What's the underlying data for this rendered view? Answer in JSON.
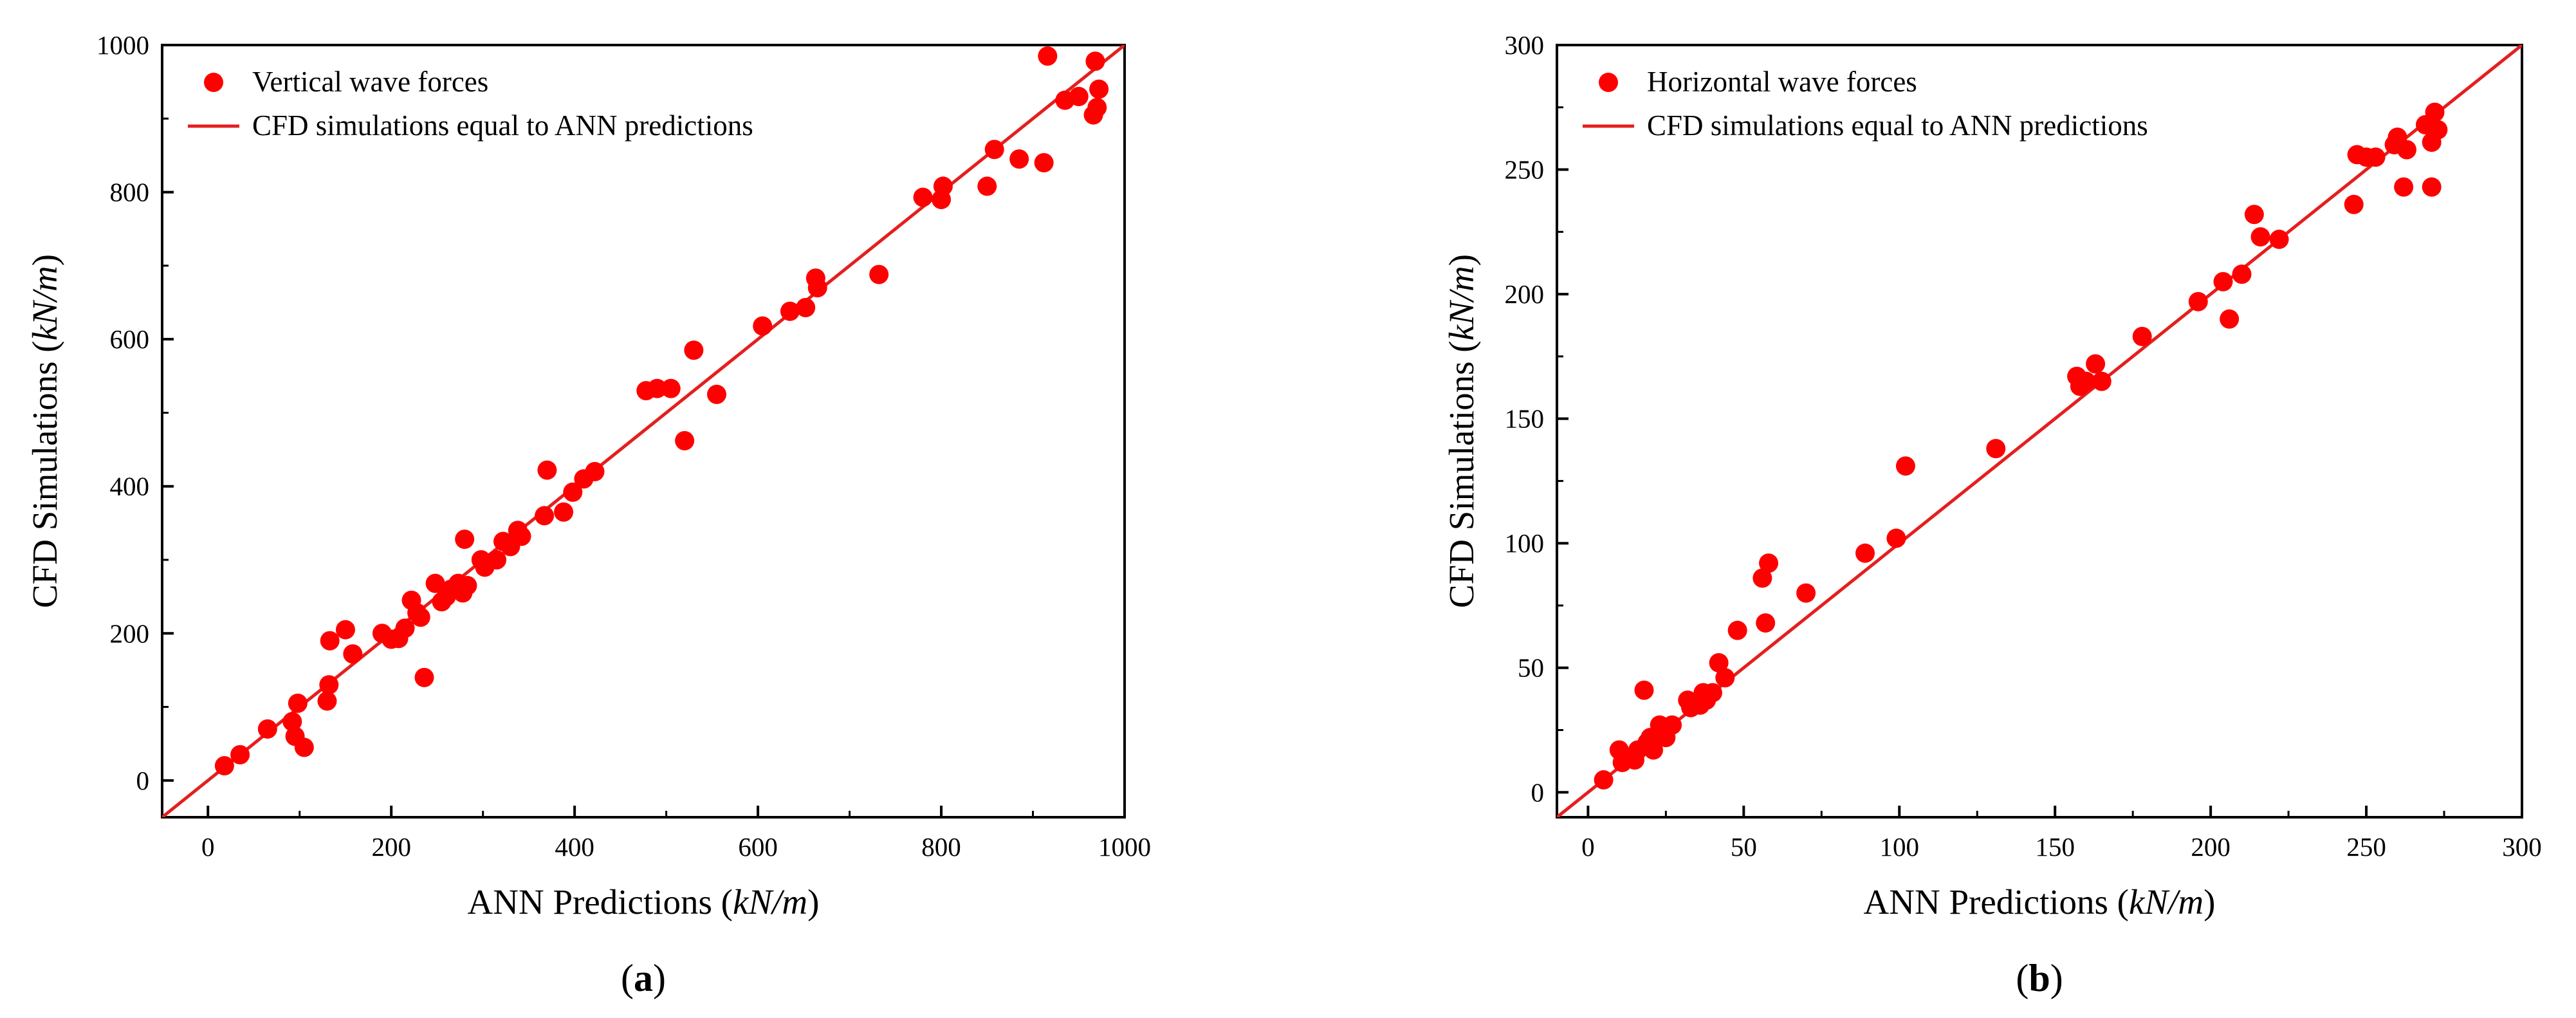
{
  "chart_data": [
    {
      "type": "scatter",
      "panel_label": "a",
      "xlabel": {
        "main": "ANN Predictions (",
        "unit": "kN/m",
        "close": ")"
      },
      "ylabel": {
        "main": "CFD Simulations (",
        "unit": "kN/m",
        "close": ")"
      },
      "xlim": [
        -50,
        1000
      ],
      "ylim": [
        -50,
        1000
      ],
      "xticks": [
        0,
        200,
        400,
        600,
        800,
        1000
      ],
      "yticks": [
        0,
        200,
        400,
        600,
        800,
        1000
      ],
      "legend": {
        "position": "top-left",
        "entries": [
          "Vertical wave forces",
          "CFD simulations equal to ANN predictions"
        ]
      },
      "colors": {
        "marker": "#ff0000",
        "line": "#e41f1f"
      },
      "line": [
        [
          -50,
          -50
        ],
        [
          1000,
          1000
        ]
      ],
      "series": [
        {
          "name": "Vertical wave forces",
          "points": [
            [
              18,
              20
            ],
            [
              35,
              35
            ],
            [
              65,
              70
            ],
            [
              92,
              80
            ],
            [
              95,
              60
            ],
            [
              98,
              105
            ],
            [
              105,
              45
            ],
            [
              130,
              108
            ],
            [
              132,
              130
            ],
            [
              133,
              190
            ],
            [
              150,
              205
            ],
            [
              158,
              172
            ],
            [
              190,
              200
            ],
            [
              200,
              192
            ],
            [
              208,
              193
            ],
            [
              215,
              207
            ],
            [
              222,
              245
            ],
            [
              228,
              228
            ],
            [
              232,
              222
            ],
            [
              236,
              140
            ],
            [
              248,
              268
            ],
            [
              255,
              243
            ],
            [
              260,
              250
            ],
            [
              265,
              260
            ],
            [
              273,
              268
            ],
            [
              278,
              255
            ],
            [
              280,
              328
            ],
            [
              283,
              265
            ],
            [
              298,
              300
            ],
            [
              302,
              290
            ],
            [
              315,
              300
            ],
            [
              322,
              325
            ],
            [
              330,
              318
            ],
            [
              338,
              340
            ],
            [
              342,
              332
            ],
            [
              367,
              360
            ],
            [
              370,
              422
            ],
            [
              388,
              365
            ],
            [
              398,
              392
            ],
            [
              410,
              410
            ],
            [
              422,
              420
            ],
            [
              478,
              530
            ],
            [
              490,
              533
            ],
            [
              505,
              533
            ],
            [
              520,
              462
            ],
            [
              530,
              585
            ],
            [
              555,
              525
            ],
            [
              605,
              618
            ],
            [
              635,
              638
            ],
            [
              652,
              643
            ],
            [
              663,
              683
            ],
            [
              665,
              670
            ],
            [
              732,
              688
            ],
            [
              780,
              793
            ],
            [
              800,
              790
            ],
            [
              802,
              808
            ],
            [
              850,
              808
            ],
            [
              858,
              858
            ],
            [
              885,
              845
            ],
            [
              912,
              840
            ],
            [
              916,
              985
            ],
            [
              935,
              925
            ],
            [
              950,
              930
            ],
            [
              966,
              905
            ],
            [
              968,
              978
            ],
            [
              970,
              915
            ],
            [
              972,
              940
            ]
          ]
        }
      ]
    },
    {
      "type": "scatter",
      "panel_label": "b",
      "xlabel": {
        "main": "ANN Predictions (",
        "unit": "kN/m",
        "close": ")"
      },
      "ylabel": {
        "main": "CFD Simulations (",
        "unit": "kN/m",
        "close": ")"
      },
      "xlim": [
        -10,
        300
      ],
      "ylim": [
        -10,
        300
      ],
      "xticks": [
        0,
        50,
        100,
        150,
        200,
        250,
        300
      ],
      "yticks": [
        0,
        50,
        100,
        150,
        200,
        250,
        300
      ],
      "legend": {
        "position": "top-left",
        "entries": [
          "Horizontal wave forces",
          "CFD simulations equal to ANN predictions"
        ]
      },
      "colors": {
        "marker": "#ff0000",
        "line": "#e41f1f"
      },
      "line": [
        [
          -10,
          -10
        ],
        [
          300,
          300
        ]
      ],
      "series": [
        {
          "name": "Horizontal wave forces",
          "points": [
            [
              5,
              5
            ],
            [
              10,
              17
            ],
            [
              11,
              12
            ],
            [
              15,
              13
            ],
            [
              16,
              17
            ],
            [
              18,
              41
            ],
            [
              19,
              20
            ],
            [
              20,
              22
            ],
            [
              21,
              17
            ],
            [
              23,
              27
            ],
            [
              24,
              25
            ],
            [
              25,
              22
            ],
            [
              27,
              27
            ],
            [
              32,
              37
            ],
            [
              33,
              34
            ],
            [
              36,
              35
            ],
            [
              37,
              40
            ],
            [
              38,
              37
            ],
            [
              40,
              40
            ],
            [
              42,
              52
            ],
            [
              44,
              46
            ],
            [
              48,
              65
            ],
            [
              56,
              86
            ],
            [
              57,
              68
            ],
            [
              58,
              92
            ],
            [
              70,
              80
            ],
            [
              89,
              96
            ],
            [
              99,
              102
            ],
            [
              102,
              131
            ],
            [
              131,
              138
            ],
            [
              157,
              167
            ],
            [
              158,
              163
            ],
            [
              160,
              165
            ],
            [
              163,
              172
            ],
            [
              165,
              165
            ],
            [
              178,
              183
            ],
            [
              196,
              197
            ],
            [
              204,
              205
            ],
            [
              206,
              190
            ],
            [
              210,
              208
            ],
            [
              214,
              232
            ],
            [
              216,
              223
            ],
            [
              222,
              222
            ],
            [
              246,
              236
            ],
            [
              247,
              256
            ],
            [
              250,
              255
            ],
            [
              253,
              255
            ],
            [
              259,
              260
            ],
            [
              260,
              263
            ],
            [
              262,
              243
            ],
            [
              263,
              258
            ],
            [
              269,
              268
            ],
            [
              271,
              243
            ],
            [
              271,
              261
            ],
            [
              272,
              273
            ],
            [
              273,
              266
            ]
          ]
        }
      ]
    }
  ]
}
